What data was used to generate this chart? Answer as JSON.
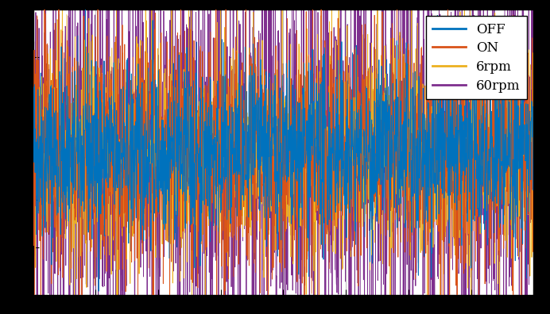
{
  "title": "",
  "xlabel": "",
  "ylabel": "",
  "colors": {
    "60rpm": "#0072bd",
    "6rpm": "#d95319",
    "ON": "#edb120",
    "OFF": "#7e2f8e"
  },
  "legend_labels": [
    "60rpm",
    "6rpm",
    "ON",
    "OFF"
  ],
  "n_points": 2000,
  "ylim": [
    -1.5,
    1.5
  ],
  "xlim": [
    0,
    1
  ],
  "background_color": "#ffffff",
  "outer_background": "#000000",
  "line_width": 0.6,
  "legend_fontsize": 12,
  "seed_60rpm": 42,
  "seed_6rpm": 123,
  "seed_on": 456,
  "seed_off": 789,
  "std_60rpm": 0.45,
  "std_6rpm": 0.65,
  "std_on": 0.6,
  "std_off": 1.1
}
